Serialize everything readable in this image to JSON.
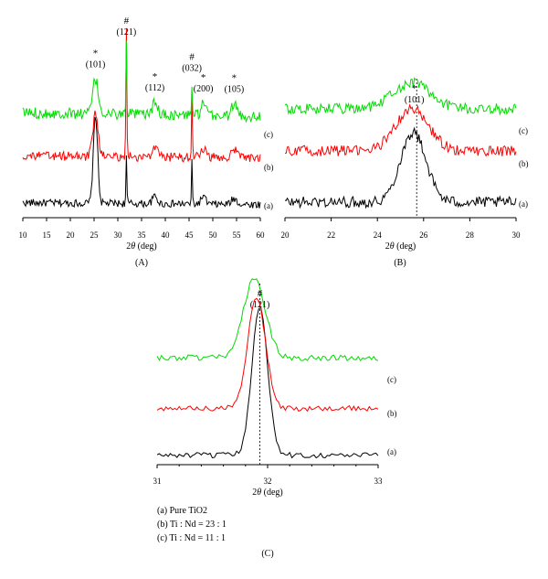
{
  "chart_data": [
    {
      "type": "line",
      "panel_label": "(A)",
      "xlabel_prefix": "2",
      "xlabel_theta": "θ",
      "xlabel_unit": " (deg)",
      "xlim": [
        10,
        60
      ],
      "x_ticks": [
        "10",
        "15",
        "20",
        "25",
        "30",
        "35",
        "40",
        "45",
        "50",
        "55",
        "60"
      ],
      "series": [
        {
          "tag": "(a)",
          "color": "#000000",
          "baseline": 0.08,
          "noise": 0.02,
          "slope": -0.01,
          "peaks": [
            [
              25.3,
              0.47,
              0.45
            ],
            [
              31.8,
              0.25,
              0.1
            ],
            [
              37.8,
              0.04,
              0.5
            ],
            [
              45.6,
              0.22,
              0.1
            ],
            [
              48.0,
              0.04,
              0.5
            ],
            [
              54.5,
              0.03,
              0.6
            ]
          ]
        },
        {
          "tag": "(b)",
          "color": "#ff0000",
          "baseline": 0.33,
          "noise": 0.025,
          "slope": -0.01,
          "peaks": [
            [
              25.3,
              0.23,
              0.55
            ],
            [
              31.8,
              0.7,
              0.1
            ],
            [
              37.8,
              0.04,
              0.6
            ],
            [
              45.6,
              0.35,
              0.1
            ],
            [
              48.0,
              0.05,
              0.5
            ],
            [
              54.5,
              0.04,
              0.6
            ]
          ]
        },
        {
          "tag": "(c)",
          "color": "#00dd00",
          "baseline": 0.56,
          "noise": 0.03,
          "slope": -0.02,
          "peaks": [
            [
              25.3,
              0.18,
              0.6
            ],
            [
              31.8,
              0.38,
              0.1
            ],
            [
              37.8,
              0.06,
              0.6
            ],
            [
              45.6,
              0.17,
              0.1
            ],
            [
              48.0,
              0.06,
              0.5
            ],
            [
              54.5,
              0.06,
              0.6
            ]
          ]
        }
      ],
      "annotations": [
        {
          "sym": "*",
          "label": "(101)",
          "x": 25.3
        },
        {
          "sym": "#",
          "label": "(121)",
          "x": 31.8
        },
        {
          "sym": "*",
          "label": "(112)",
          "x": 37.8
        },
        {
          "sym": "#",
          "label": "(032)",
          "x": 45.6
        },
        {
          "sym": "*",
          "label": "(200)",
          "x": 48.0
        },
        {
          "sym": "*",
          "label": "(105)",
          "x": 54.5
        }
      ]
    },
    {
      "type": "line",
      "panel_label": "(B)",
      "xlabel_prefix": "2",
      "xlabel_theta": "θ",
      "xlabel_unit": " (deg)",
      "xlim": [
        20,
        30
      ],
      "x_ticks": [
        "20",
        "22",
        "24",
        "26",
        "28",
        "30"
      ],
      "reference_line_x": 25.7,
      "series": [
        {
          "tag": "(a)",
          "color": "#000000",
          "baseline": 0.1,
          "noise": 0.035,
          "slope": 0,
          "peaks": [
            [
              25.55,
              0.45,
              0.55
            ]
          ]
        },
        {
          "tag": "(b)",
          "color": "#ff0000",
          "baseline": 0.43,
          "noise": 0.035,
          "slope": 0,
          "peaks": [
            [
              25.5,
              0.27,
              0.7
            ]
          ]
        },
        {
          "tag": "(c)",
          "color": "#00dd00",
          "baseline": 0.7,
          "noise": 0.035,
          "slope": 0,
          "peaks": [
            [
              25.5,
              0.17,
              0.8
            ]
          ]
        }
      ],
      "annotations": [
        {
          "sym": "*",
          "label": "(101)",
          "x": 25.6
        }
      ]
    },
    {
      "type": "line",
      "panel_label": "(C)",
      "xlabel_prefix": "2",
      "xlabel_theta": "θ",
      "xlabel_unit": " (deg)",
      "xlim": [
        31,
        33
      ],
      "x_ticks": [
        "31",
        "32",
        "33"
      ],
      "reference_line_x": 31.93,
      "series": [
        {
          "tag": "(a)",
          "color": "#000000",
          "baseline": 0.05,
          "noise": 0.015,
          "slope": 0,
          "peaks": [
            [
              31.93,
              0.8,
              0.07
            ]
          ]
        },
        {
          "tag": "(b)",
          "color": "#ff0000",
          "baseline": 0.3,
          "noise": 0.015,
          "slope": 0,
          "peaks": [
            [
              31.9,
              0.6,
              0.08
            ]
          ]
        },
        {
          "tag": "(c)",
          "color": "#00dd00",
          "baseline": 0.57,
          "noise": 0.015,
          "slope": 0,
          "peaks": [
            [
              31.88,
              0.42,
              0.1
            ]
          ]
        }
      ],
      "annotations": [
        {
          "sym": "#",
          "label": "(121)",
          "x": 31.93
        }
      ],
      "legend": [
        "(a) Pure TiO2",
        "(b) Ti : Nd = 23 : 1",
        "(c) Ti : Nd = 11 : 1"
      ]
    }
  ]
}
